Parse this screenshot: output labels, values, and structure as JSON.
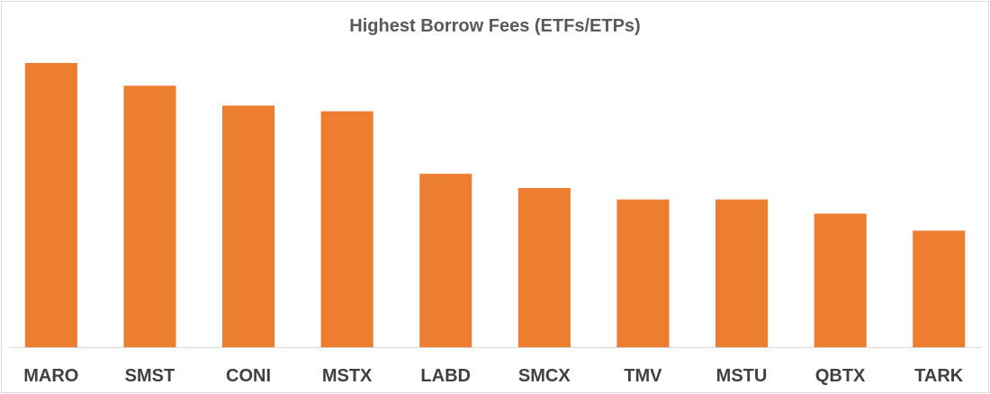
{
  "chart_data": {
    "type": "bar",
    "title": "Highest Borrow Fees (ETFs/ETPs)",
    "xlabel": "",
    "ylabel": "",
    "categories": [
      "MARO",
      "SMST",
      "CONI",
      "MSTX",
      "LABD",
      "SMCX",
      "TMV",
      "MSTU",
      "QBTX",
      "TARK"
    ],
    "values": [
      100,
      92,
      85,
      83,
      61,
      56,
      52,
      52,
      47,
      41
    ],
    "ylim": [
      0,
      100
    ],
    "grid": false,
    "legend": "none",
    "bar_color": "#ED7D31",
    "axis_color": "#d9d9d9"
  }
}
